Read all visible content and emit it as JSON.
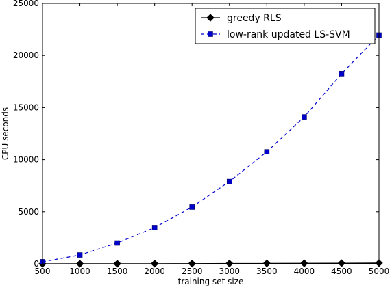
{
  "chart_data": {
    "type": "line",
    "xlabel": "training set size",
    "ylabel": "CPU seconds",
    "xlim": [
      500,
      5000
    ],
    "ylim": [
      0,
      25000
    ],
    "xticks": [
      500,
      1000,
      1500,
      2000,
      2500,
      3000,
      3500,
      4000,
      4500,
      5000
    ],
    "yticks": [
      0,
      5000,
      10000,
      15000,
      20000,
      25000
    ],
    "grid": false,
    "legend_position": "top-right",
    "series": [
      {
        "name": "greedy RLS",
        "color": "#000000",
        "marker": "diamond",
        "line_style": "solid",
        "x": [
          500,
          1000,
          1500,
          2000,
          2500,
          3000,
          3500,
          4000,
          4500,
          5000
        ],
        "y": [
          2,
          5,
          9,
          15,
          22,
          30,
          40,
          50,
          62,
          75
        ]
      },
      {
        "name": "low-rank updated LS-SVM",
        "color": "#0000cc",
        "marker": "square",
        "line_style": "dashed",
        "x": [
          500,
          1000,
          1500,
          2000,
          2500,
          3000,
          3500,
          4000,
          4500,
          5000
        ],
        "y": [
          200,
          850,
          2000,
          3480,
          5450,
          7900,
          10750,
          14100,
          18250,
          21950
        ]
      }
    ]
  }
}
